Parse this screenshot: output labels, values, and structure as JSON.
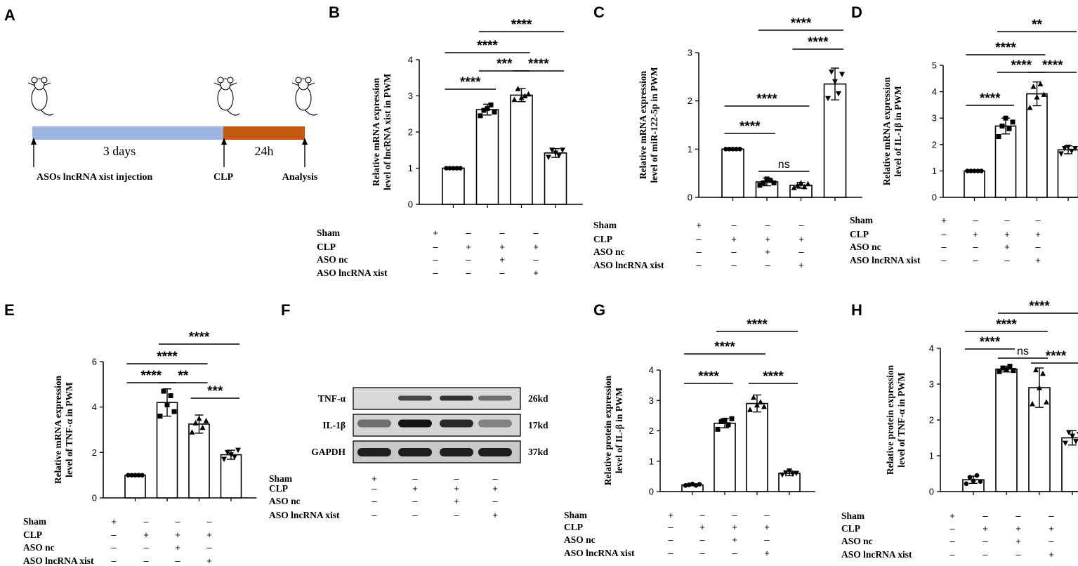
{
  "panels": {
    "A": "A",
    "B": "B",
    "C": "C",
    "D": "D",
    "E": "E",
    "F": "F",
    "G": "G",
    "H": "H"
  },
  "timeline": {
    "duration_1": "3 days",
    "duration_2": "24h",
    "event_1": "ASOs lncRNA xist injection",
    "event_2": "CLP",
    "event_3": "Analysis",
    "colors": {
      "segment_1": "#9bb5e0",
      "segment_2": "#c55a11"
    }
  },
  "conditions": {
    "labels": [
      "Sham",
      "CLP",
      "ASO nc",
      "ASO lncRNA xist"
    ],
    "matrix": [
      [
        "+",
        "–",
        "–",
        "–"
      ],
      [
        "–",
        "+",
        "+",
        "+"
      ],
      [
        "–",
        "–",
        "+",
        "–"
      ],
      [
        "–",
        "–",
        "–",
        "+"
      ]
    ]
  },
  "blot": {
    "bands": [
      {
        "name": "TNF-α",
        "size": "26kd"
      },
      {
        "name": "IL-1β",
        "size": "17kd"
      },
      {
        "name": "GAPDH",
        "size": "37kd"
      }
    ]
  },
  "chart_data": [
    {
      "panel": "B",
      "type": "bar",
      "ylabel_1": "Relative mRNA expression",
      "ylabel_2": "level of lncRNA xist  in PWM",
      "ylim": [
        0,
        4
      ],
      "yticks": [
        0,
        1,
        2,
        3,
        4
      ],
      "values": [
        1.0,
        2.62,
        3.02,
        1.42
      ],
      "errors": [
        0.01,
        0.15,
        0.18,
        0.12
      ],
      "points": [
        [
          1,
          1,
          1,
          1,
          1
        ],
        [
          2.45,
          2.6,
          2.65,
          2.75,
          2.55
        ],
        [
          2.9,
          3.2,
          2.95,
          3.0,
          3.05
        ],
        [
          1.3,
          1.5,
          1.42,
          1.35,
          1.5
        ]
      ],
      "markers": [
        "circle",
        "square",
        "triangle",
        "tri-down"
      ],
      "comparisons": [
        {
          "a": 0,
          "b": 1,
          "label": "****"
        },
        {
          "a": 1,
          "b": 2,
          "label": "***"
        },
        {
          "a": 2,
          "b": 3,
          "label": "****"
        },
        {
          "a": 0,
          "b": 2,
          "label": "****"
        },
        {
          "a": 1,
          "b": 3,
          "label": "****"
        }
      ]
    },
    {
      "panel": "C",
      "type": "bar",
      "ylabel_1": "Relative mRNA expression",
      "ylabel_2": "level of miR-122-5p in PWM",
      "ylim": [
        0,
        3
      ],
      "yticks": [
        0,
        1,
        2,
        3
      ],
      "values": [
        1.0,
        0.32,
        0.25,
        2.35
      ],
      "errors": [
        0.01,
        0.08,
        0.06,
        0.33
      ],
      "points": [
        [
          1,
          1,
          1,
          1,
          1
        ],
        [
          0.25,
          0.3,
          0.38,
          0.35,
          0.3
        ],
        [
          0.2,
          0.25,
          0.3,
          0.22,
          0.28
        ],
        [
          2.05,
          2.6,
          2.4,
          2.15,
          2.55
        ]
      ],
      "markers": [
        "circle",
        "square",
        "triangle",
        "tri-down"
      ],
      "comparisons": [
        {
          "a": 0,
          "b": 1,
          "label": "****"
        },
        {
          "a": 1,
          "b": 2,
          "label": "ns"
        },
        {
          "a": 0,
          "b": 2,
          "label": "****"
        },
        {
          "a": 2,
          "b": 3,
          "label": "****"
        },
        {
          "a": 1,
          "b": 3,
          "label": "****"
        }
      ]
    },
    {
      "panel": "D",
      "type": "bar",
      "ylabel_1": "Relative mRNA expression",
      "ylabel_2": "level of IL-1β in PWM",
      "ylim": [
        0,
        5
      ],
      "yticks": [
        0,
        1,
        2,
        3,
        4,
        5
      ],
      "values": [
        1.0,
        2.7,
        3.92,
        1.8
      ],
      "errors": [
        0.01,
        0.3,
        0.45,
        0.15
      ],
      "points": [
        [
          1,
          1,
          1,
          1,
          1
        ],
        [
          2.3,
          2.7,
          3.0,
          2.6,
          2.85
        ],
        [
          3.4,
          4.2,
          3.8,
          4.3,
          3.9
        ],
        [
          1.65,
          1.85,
          1.9,
          1.75,
          1.85
        ]
      ],
      "markers": [
        "circle",
        "square",
        "triangle",
        "tri-down"
      ],
      "comparisons": [
        {
          "a": 0,
          "b": 1,
          "label": "****"
        },
        {
          "a": 1,
          "b": 2,
          "label": "****"
        },
        {
          "a": 2,
          "b": 3,
          "label": "****"
        },
        {
          "a": 0,
          "b": 2,
          "label": "****"
        },
        {
          "a": 1,
          "b": 3,
          "label": "**"
        }
      ]
    },
    {
      "panel": "E",
      "type": "bar",
      "ylabel_1": "Relative mRNA expression",
      "ylabel_2": "level of TNF-α in PWM",
      "ylim": [
        0,
        6
      ],
      "yticks": [
        0,
        2,
        4,
        6
      ],
      "values": [
        1.0,
        4.2,
        3.25,
        1.9
      ],
      "errors": [
        0.01,
        0.6,
        0.4,
        0.2
      ],
      "points": [
        [
          1,
          1,
          1,
          1,
          1
        ],
        [
          3.6,
          4.7,
          4.1,
          4.5,
          3.8
        ],
        [
          2.9,
          3.3,
          3.5,
          3.1,
          3.4
        ],
        [
          1.7,
          2.0,
          1.9,
          1.8,
          2.1
        ]
      ],
      "markers": [
        "circle",
        "square",
        "triangle",
        "tri-down"
      ],
      "comparisons": [
        {
          "a": 0,
          "b": 1,
          "label": "****"
        },
        {
          "a": 1,
          "b": 2,
          "label": "**"
        },
        {
          "a": 2,
          "b": 3,
          "label": "***"
        },
        {
          "a": 0,
          "b": 2,
          "label": "****"
        },
        {
          "a": 1,
          "b": 3,
          "label": "****"
        }
      ]
    },
    {
      "panel": "G",
      "type": "bar",
      "ylabel_1": "Relative protein expression",
      "ylabel_2": "level of IL-β in PWM",
      "ylim": [
        0,
        4
      ],
      "yticks": [
        0,
        1,
        2,
        3,
        4
      ],
      "values": [
        0.22,
        2.25,
        2.9,
        0.6
      ],
      "errors": [
        0.03,
        0.15,
        0.28,
        0.08
      ],
      "points": [
        [
          0.2,
          0.22,
          0.25,
          0.2,
          0.24
        ],
        [
          2.05,
          2.3,
          2.35,
          2.2,
          2.4
        ],
        [
          2.7,
          3.1,
          2.85,
          2.95,
          2.8
        ],
        [
          0.55,
          0.62,
          0.68,
          0.58,
          0.6
        ]
      ],
      "markers": [
        "circle",
        "square",
        "triangle",
        "tri-down"
      ],
      "comparisons": [
        {
          "a": 0,
          "b": 1,
          "label": "****"
        },
        {
          "a": 2,
          "b": 3,
          "label": "****"
        },
        {
          "a": 0,
          "b": 2,
          "label": "****"
        },
        {
          "a": 1,
          "b": 3,
          "label": "****"
        }
      ]
    },
    {
      "panel": "H",
      "type": "bar",
      "ylabel_1": "Relative protein expression",
      "ylabel_2": "level of TNF-α in PWM",
      "ylim": [
        0,
        4
      ],
      "yticks": [
        0,
        1,
        2,
        3,
        4
      ],
      "values": [
        0.33,
        3.42,
        2.9,
        1.5
      ],
      "errors": [
        0.1,
        0.08,
        0.55,
        0.2
      ],
      "points": [
        [
          0.22,
          0.4,
          0.3,
          0.45,
          0.28
        ],
        [
          3.35,
          3.45,
          3.4,
          3.5,
          3.38
        ],
        [
          2.45,
          3.4,
          2.9,
          3.3,
          2.5
        ],
        [
          1.35,
          1.65,
          1.55,
          1.4,
          1.6
        ]
      ],
      "markers": [
        "circle",
        "square",
        "triangle",
        "tri-down"
      ],
      "comparisons": [
        {
          "a": 0,
          "b": 1,
          "label": "****"
        },
        {
          "a": 1,
          "b": 2,
          "label": "ns"
        },
        {
          "a": 2,
          "b": 3,
          "label": "****"
        },
        {
          "a": 0,
          "b": 2,
          "label": "****"
        },
        {
          "a": 1,
          "b": 3,
          "label": "****"
        }
      ]
    }
  ]
}
